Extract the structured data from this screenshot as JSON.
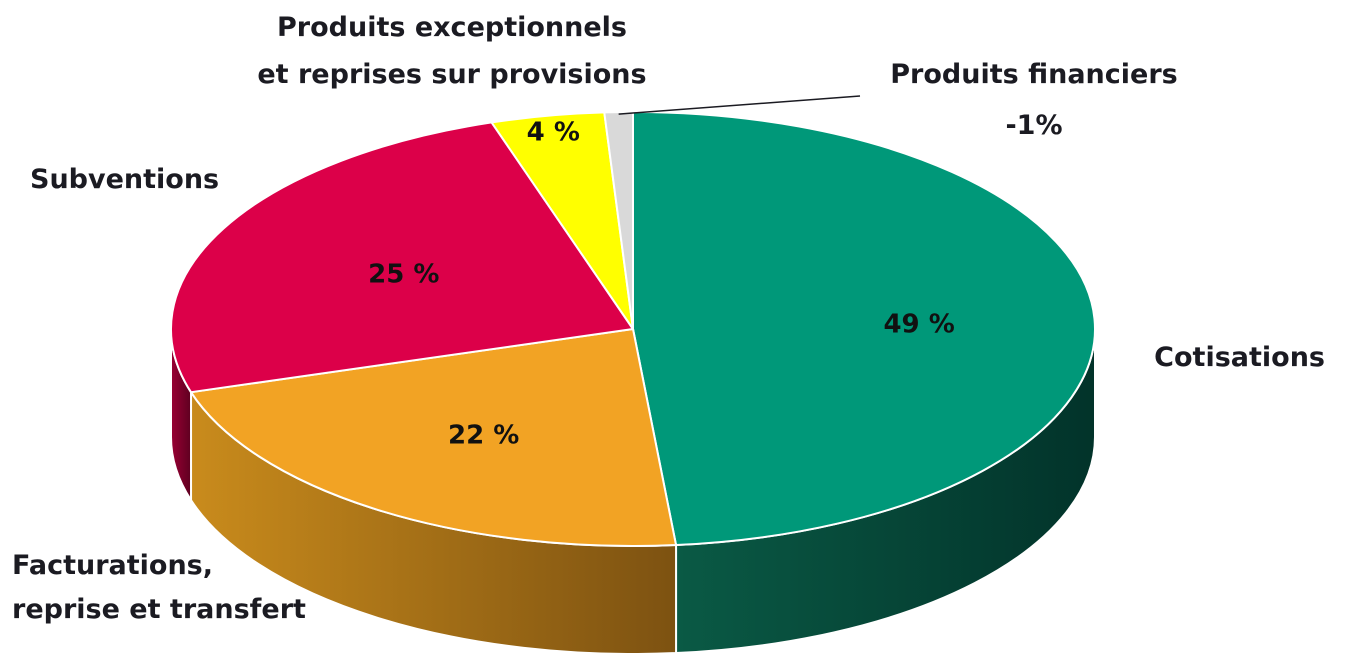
{
  "chart_data": {
    "type": "pie",
    "style": "3d",
    "start_angle_deg": 0,
    "direction": "clockwise",
    "slices": [
      {
        "category": "Cotisations",
        "value": 49,
        "value_label": "49 %",
        "color": "#009879",
        "side_color": "#0a5a45",
        "side_color_dark": "#02332a"
      },
      {
        "category": "Facturations, reprise et transfert",
        "value": 22,
        "value_label": "22 %",
        "color": "#f2a324",
        "side_color": "#c98b1c",
        "side_color_dark": "#7d5211"
      },
      {
        "category": "Subventions",
        "value": 25,
        "value_label": "25 %",
        "color": "#dc0049",
        "side_color": "#9a0034",
        "side_color_dark": "#5e0020"
      },
      {
        "category": "Produits exceptionnels et reprises sur provisions",
        "value": 4,
        "value_label": "4 %",
        "color": "#ffff00",
        "side_color": "#c9c900",
        "side_color_dark": "#8a8a00"
      },
      {
        "category": "Produits financiers",
        "value": -1,
        "value_label": "-1%",
        "color": "#d9d9d9",
        "side_color": "#a0a0a0",
        "side_color_dark": "#707070"
      }
    ],
    "labels": {
      "cotisations": [
        "Cotisations"
      ],
      "facturations": [
        "Facturations,",
        "reprise et transfert"
      ],
      "subventions": [
        "Subventions"
      ],
      "exceptionnels": [
        "Produits exceptionnels",
        "et reprises sur provisions"
      ],
      "financiers": [
        "Produits financiers",
        "-1%"
      ]
    },
    "legend": "none"
  }
}
